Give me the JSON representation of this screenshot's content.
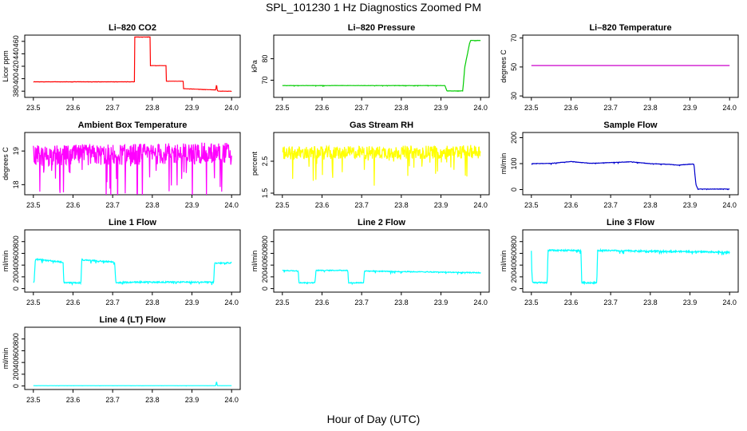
{
  "figure": {
    "title": "SPL_101230  1 Hz Diagnostics Zoomed PM",
    "x_axis_title": "Hour of Day (UTC)"
  },
  "chart_data": [
    {
      "type": "line",
      "title": "Li–820 CO2",
      "ylabel": "Licor ppm",
      "color": "#ff0000",
      "xlim": [
        23.5,
        24.0
      ],
      "xticks": [
        23.5,
        23.6,
        23.7,
        23.8,
        23.9,
        24.0
      ],
      "ylim": [
        370,
        470
      ],
      "yticks": [
        380,
        400,
        420,
        440,
        460
      ],
      "noise": 0.3,
      "series": [
        {
          "x": [
            23.5,
            23.755,
            23.755,
            23.795,
            23.795,
            23.835,
            23.835,
            23.878,
            23.878,
            23.96,
            23.962,
            23.964,
            23.966,
            24.0
          ],
          "y": [
            395,
            395,
            467,
            467,
            421,
            421,
            396,
            396,
            384,
            382,
            391,
            381,
            380,
            380
          ]
        }
      ]
    },
    {
      "type": "line",
      "title": "Li–820 Pressure",
      "ylabel": "kPa",
      "color": "#00cc00",
      "xlim": [
        23.5,
        24.0
      ],
      "xticks": [
        23.5,
        23.6,
        23.7,
        23.8,
        23.9,
        24.0
      ],
      "ylim": [
        62,
        91
      ],
      "yticks": [
        70,
        80
      ],
      "noise": 0.15,
      "series": [
        {
          "x": [
            23.5,
            23.91,
            23.915,
            23.955,
            23.96,
            23.972,
            23.975,
            24.0
          ],
          "y": [
            67.5,
            67.5,
            65,
            65,
            76,
            87,
            88.5,
            88.5
          ]
        }
      ]
    },
    {
      "type": "line",
      "title": "Li–820 Temperature",
      "ylabel": "degrees C",
      "color": "#cc00cc",
      "xlim": [
        23.5,
        24.0
      ],
      "xticks": [
        23.5,
        23.6,
        23.7,
        23.8,
        23.9,
        24.0
      ],
      "ylim": [
        29,
        72
      ],
      "yticks": [
        30,
        50,
        70
      ],
      "noise": 0,
      "series": [
        {
          "x": [
            23.5,
            24.0
          ],
          "y": [
            51,
            51
          ]
        }
      ]
    },
    {
      "type": "line",
      "title": "Ambient Box Temperature",
      "ylabel": "degrees C",
      "color": "#ff00ff",
      "xlim": [
        23.5,
        24.0
      ],
      "xticks": [
        23.5,
        23.6,
        23.7,
        23.8,
        23.9,
        24.0
      ],
      "ylim": [
        17.7,
        19.55
      ],
      "yticks": [
        18.0,
        19.0
      ],
      "noise": 0.9,
      "series": [
        {
          "x": [
            23.5,
            24.0
          ],
          "y": [
            18.85,
            18.95
          ]
        }
      ]
    },
    {
      "type": "line",
      "title": "Gas Stream RH",
      "ylabel": "percent",
      "color": "#ffff00",
      "xlim": [
        23.5,
        24.0
      ],
      "xticks": [
        23.5,
        23.6,
        23.7,
        23.8,
        23.9,
        24.0
      ],
      "ylim": [
        1.45,
        3.4
      ],
      "yticks": [
        1.5,
        2.5
      ],
      "noise": 0.6,
      "series": [
        {
          "x": [
            23.5,
            24.0
          ],
          "y": [
            2.75,
            2.8
          ]
        }
      ]
    },
    {
      "type": "line",
      "title": "Sample Flow",
      "ylabel": "ml/min",
      "color": "#0000cc",
      "xlim": [
        23.5,
        24.0
      ],
      "xticks": [
        23.5,
        23.6,
        23.7,
        23.8,
        23.9,
        24.0
      ],
      "ylim": [
        -20,
        220
      ],
      "yticks": [
        0,
        100,
        200
      ],
      "noise": 2,
      "series": [
        {
          "x": [
            23.5,
            23.55,
            23.6,
            23.65,
            23.7,
            23.75,
            23.8,
            23.85,
            23.87,
            23.9,
            23.91,
            23.915,
            23.92,
            24.0
          ],
          "y": [
            100,
            101,
            108,
            101,
            104,
            107,
            100,
            97,
            94,
            98,
            98,
            20,
            2,
            2
          ]
        }
      ]
    },
    {
      "type": "line",
      "title": "Line 1 Flow",
      "ylabel": "ml/min",
      "color": "#00ffff",
      "xlim": [
        23.5,
        24.0
      ],
      "xticks": [
        23.5,
        23.6,
        23.7,
        23.8,
        23.9,
        24.0
      ],
      "ylim": [
        -60,
        1000
      ],
      "yticks": [
        0,
        200,
        400,
        600,
        800
      ],
      "noise": 30,
      "series": [
        {
          "x": [
            23.5,
            23.502,
            23.505,
            23.575,
            23.577,
            23.62,
            23.622,
            23.705,
            23.708,
            23.755,
            23.955,
            23.957,
            24.0
          ],
          "y": [
            100,
            120,
            500,
            450,
            100,
            100,
            490,
            450,
            100,
            110,
            110,
            430,
            440
          ]
        }
      ]
    },
    {
      "type": "line",
      "title": "Line 2 Flow",
      "ylabel": "ml/min",
      "color": "#00ffff",
      "xlim": [
        23.5,
        24.0
      ],
      "xticks": [
        23.5,
        23.6,
        23.7,
        23.8,
        23.9,
        24.0
      ],
      "ylim": [
        -60,
        1000
      ],
      "yticks": [
        0,
        200,
        400,
        600,
        800
      ],
      "noise": 20,
      "series": [
        {
          "x": [
            23.5,
            23.54,
            23.542,
            23.582,
            23.585,
            23.665,
            23.667,
            23.705,
            23.707,
            24.0
          ],
          "y": [
            310,
            300,
            100,
            100,
            310,
            310,
            100,
            100,
            300,
            270
          ]
        }
      ]
    },
    {
      "type": "line",
      "title": "Line 3 Flow",
      "ylabel": "ml/min",
      "color": "#00ffff",
      "xlim": [
        23.5,
        24.0
      ],
      "xticks": [
        23.5,
        23.6,
        23.7,
        23.8,
        23.9,
        24.0
      ],
      "ylim": [
        -60,
        1000
      ],
      "yticks": [
        0,
        200,
        400,
        600,
        800
      ],
      "noise": 35,
      "series": [
        {
          "x": [
            23.5,
            23.501,
            23.503,
            23.54,
            23.542,
            23.625,
            23.627,
            23.665,
            23.667,
            24.0
          ],
          "y": [
            650,
            300,
            100,
            100,
            650,
            650,
            100,
            100,
            650,
            620
          ]
        }
      ]
    },
    {
      "type": "line",
      "title": "Line 4 (LT) Flow",
      "ylabel": "ml/min",
      "color": "#00ffff",
      "xlim": [
        23.5,
        24.0
      ],
      "xticks": [
        23.5,
        23.6,
        23.7,
        23.8,
        23.9,
        24.0
      ],
      "ylim": [
        -60,
        1000
      ],
      "yticks": [
        0,
        200,
        400,
        600,
        800
      ],
      "noise": 2,
      "series": [
        {
          "x": [
            23.5,
            23.96,
            23.962,
            23.964,
            24.0
          ],
          "y": [
            5,
            5,
            80,
            5,
            5
          ]
        }
      ]
    }
  ]
}
